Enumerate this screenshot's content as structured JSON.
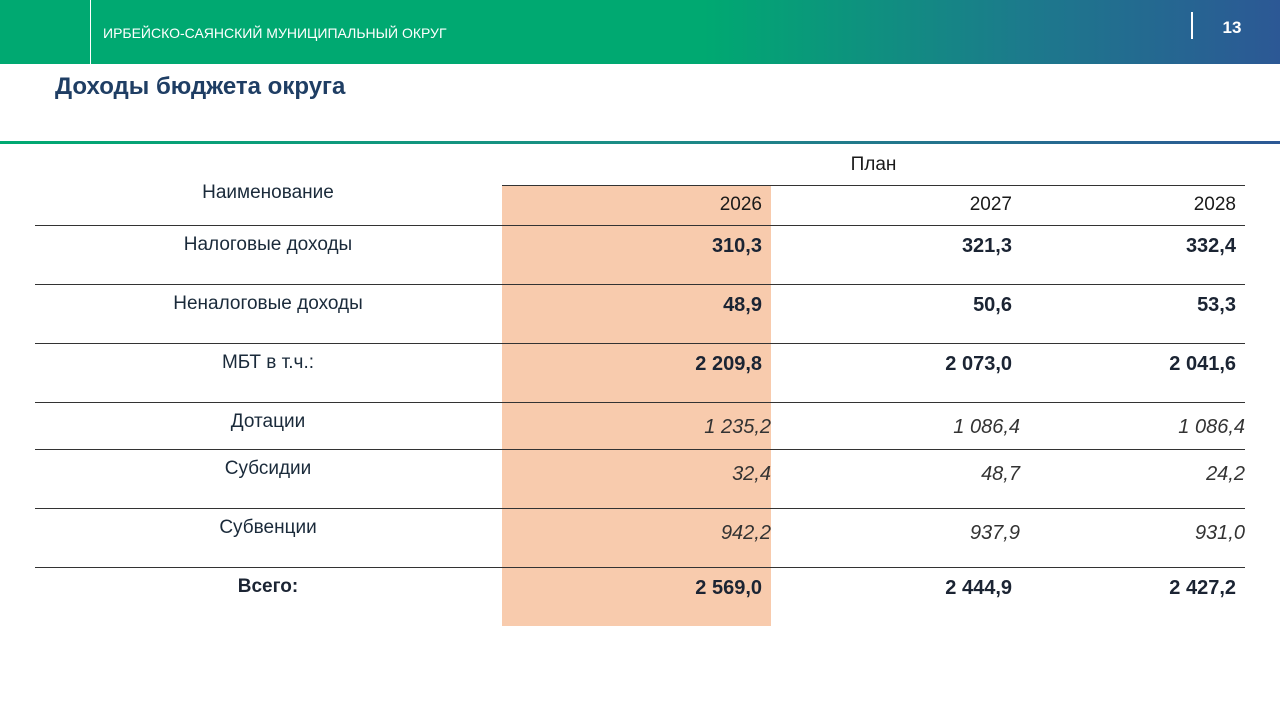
{
  "header": {
    "organization": "ИРБЕЙСКО-САЯНСКИЙ МУНИЦИПАЛЬНЫЙ ОКРУГ",
    "page_number": "13"
  },
  "title": "Доходы бюджета округа",
  "table": {
    "name_header": "Наименование",
    "plan_header": "План",
    "years": [
      "2026",
      "2027",
      "2028"
    ],
    "rows": [
      {
        "name": "Налоговые доходы",
        "values": [
          "310,3",
          "321,3",
          "332,4"
        ],
        "emphasis": "bold"
      },
      {
        "name": "Неналоговые доходы",
        "values": [
          "48,9",
          "50,6",
          "53,3"
        ],
        "emphasis": "bold"
      },
      {
        "name": "МБТ в т.ч.:",
        "values": [
          "2 209,8",
          "2 073,0",
          "2 041,6"
        ],
        "emphasis": "bold"
      },
      {
        "name": "Дотации",
        "values": [
          "1 235,2",
          "1 086,4",
          "1 086,4"
        ],
        "emphasis": "italic"
      },
      {
        "name": "Субсидии",
        "values": [
          "32,4",
          "48,7",
          "24,2"
        ],
        "emphasis": "italic"
      },
      {
        "name": "Субвенции",
        "values": [
          "942,2",
          "937,9",
          "931,0"
        ],
        "emphasis": "italic"
      },
      {
        "name": "Всего:",
        "values": [
          "2 569,0",
          "2 444,9",
          "2 427,2"
        ],
        "emphasis": "total"
      }
    ]
  }
}
